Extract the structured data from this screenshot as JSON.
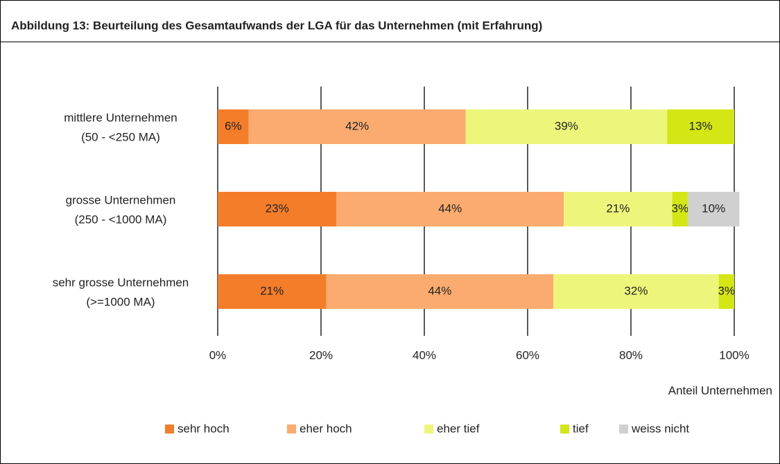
{
  "chart_data": {
    "type": "stacked_barh",
    "title": "Abbildung 13: Beurteilung des Gesamtaufwands der LGA für das Unternehmen (mit Erfahrung)",
    "categories": [
      [
        "mittlere Unternehmen",
        "(50  - <250 MA)"
      ],
      [
        "grosse Unternehmen",
        "(250 - <1000 MA)"
      ],
      [
        "sehr grosse Unternehmen",
        "(>=1000 MA)"
      ]
    ],
    "series": [
      {
        "name": "sehr hoch",
        "color": "#f47d2a",
        "values": [
          6,
          23,
          21
        ],
        "value_labels": [
          "6%",
          "23%",
          "21%"
        ]
      },
      {
        "name": "eher hoch",
        "color": "#fbab6f",
        "values": [
          42,
          44,
          44
        ],
        "value_labels": [
          "42%",
          "44%",
          "44%"
        ]
      },
      {
        "name": "eher tief",
        "color": "#edf67b",
        "values": [
          39,
          21,
          32
        ],
        "value_labels": [
          "39%",
          "21%",
          "32%"
        ]
      },
      {
        "name": "tief",
        "color": "#d4e614",
        "values": [
          13,
          3,
          3
        ],
        "value_labels": [
          "13%",
          "3%",
          "3%"
        ]
      },
      {
        "name": "weiss nicht",
        "color": "#d0d0d0",
        "values": [
          null,
          10,
          null
        ],
        "value_labels": [
          null,
          "10%",
          null
        ]
      }
    ],
    "xlim": [
      0,
      100
    ],
    "xticks": [
      {
        "value": 0,
        "label": "0%"
      },
      {
        "value": 20,
        "label": "20%"
      },
      {
        "value": 40,
        "label": "40%"
      },
      {
        "value": 60,
        "label": "60%"
      },
      {
        "value": 80,
        "label": "80%"
      },
      {
        "value": 100,
        "label": "100%"
      }
    ],
    "x_label": "Anteil Unternehmen",
    "grid": true,
    "legend": "bottom"
  }
}
